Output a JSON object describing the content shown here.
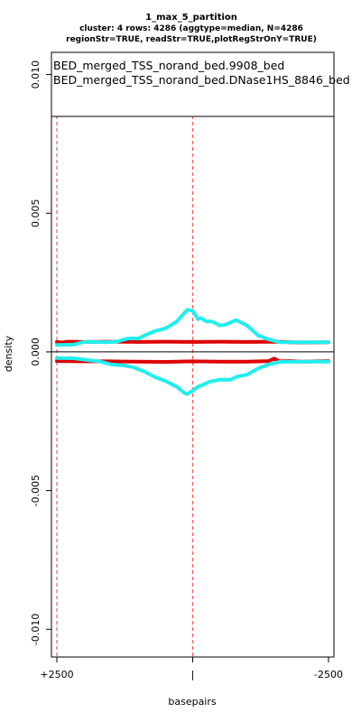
{
  "chart_data": {
    "type": "line",
    "title": "1_max_5_partition",
    "subtitle_lines": [
      "cluster: 4 rows: 4286 (aggtype=median, N=4286",
      "regionStr=TRUE, readStr=TRUE,plotRegStrOnY=TRUE)"
    ],
    "xlabel": "basepairs",
    "ylabel": "density",
    "xlim": [
      -2600,
      2600
    ],
    "ylim": [
      -0.011,
      0.0108
    ],
    "x_ticks": [
      {
        "value": -2500,
        "label": "+2500"
      },
      {
        "value": 0,
        "label": "|"
      },
      {
        "value": 2500,
        "label": "-2500"
      }
    ],
    "y_ticks": [
      {
        "value": -0.01,
        "label": "-0.010"
      },
      {
        "value": -0.005,
        "label": "-0.005"
      },
      {
        "value": 0,
        "label": "0.000"
      },
      {
        "value": 0.005,
        "label": "0.005"
      },
      {
        "value": 0.01,
        "label": "0.010"
      }
    ],
    "vlines": [
      -2500,
      0
    ],
    "hline": 0,
    "legend_position": "top",
    "series": [
      {
        "name": "BED_merged_TSS_norand_bed.9908_bed",
        "color": "#dd0000",
        "upper": {
          "x": [
            -2500,
            -2400,
            -2300,
            -2000,
            -1500,
            -1000,
            -500,
            0,
            500,
            1000,
            1500,
            1700,
            1800,
            2000,
            2500
          ],
          "y": [
            0.00036,
            0.00034,
            0.00037,
            0.00036,
            0.00037,
            0.00036,
            0.00037,
            0.00036,
            0.00037,
            0.00036,
            0.00037,
            0.00036,
            0.00035,
            0.00034,
            0.00035
          ]
        },
        "lower": {
          "x": [
            -2500,
            -2000,
            -1500,
            -1000,
            -500,
            0,
            500,
            1000,
            1400,
            1500,
            1600,
            1800,
            2000,
            2500
          ],
          "y": [
            -0.00033,
            -0.00034,
            -0.00034,
            -0.00035,
            -0.00036,
            -0.00034,
            -0.00035,
            -0.00035,
            -0.00033,
            -0.00024,
            -0.00034,
            -0.00033,
            -0.00035,
            -0.00033
          ]
        }
      },
      {
        "name": "BED_merged_TSS_norand_bed.DNase1HS_8846_bed",
        "color": "#22eeee",
        "upper": {
          "x": [
            -2500,
            -2200,
            -2000,
            -1800,
            -1600,
            -1400,
            -1200,
            -1100,
            -1000,
            -900,
            -700,
            -500,
            -300,
            -200,
            -100,
            0,
            100,
            150,
            250,
            350,
            500,
            600,
            800,
            1000,
            1100,
            1200,
            1400,
            1600,
            2000,
            2500
          ],
          "y": [
            0.00025,
            0.00026,
            0.00036,
            0.00036,
            0.00035,
            0.00037,
            0.00048,
            0.00049,
            0.00048,
            0.00058,
            0.00075,
            0.00085,
            0.00108,
            0.0013,
            0.00152,
            0.00148,
            0.00118,
            0.00122,
            0.0011,
            0.0011,
            0.00095,
            0.00098,
            0.00115,
            0.00095,
            0.00078,
            0.0006,
            0.00045,
            0.00035,
            0.00035,
            0.00035
          ]
        },
        "lower": {
          "x": [
            -2500,
            -2200,
            -1700,
            -1500,
            -1300,
            -1100,
            -900,
            -700,
            -500,
            -300,
            -150,
            -100,
            0,
            100,
            200,
            300,
            500,
            700,
            800,
            1000,
            1200,
            1400,
            1600,
            2000,
            2500
          ],
          "y": [
            -0.00022,
            -0.00023,
            -0.00035,
            -0.00045,
            -0.00048,
            -0.00055,
            -0.0007,
            -0.0009,
            -0.00105,
            -0.00125,
            -0.00148,
            -0.00152,
            -0.0014,
            -0.00125,
            -0.00118,
            -0.00108,
            -0.001,
            -0.001,
            -0.0009,
            -0.00082,
            -0.0006,
            -0.00045,
            -0.00036,
            -0.00035,
            -0.00035
          ]
        }
      }
    ]
  }
}
